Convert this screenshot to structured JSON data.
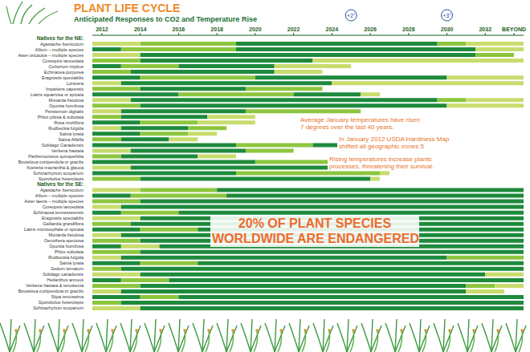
{
  "chart_data": {
    "type": "bar",
    "orientation": "horizontal",
    "stacked": true,
    "grid": false,
    "title": "PLANT LIFE CYCLE",
    "subtitle": "Anticipated Responses to CO2 and Temperature Rise",
    "xlim": [
      2011.5,
      2034
    ],
    "xticks": [
      2012,
      2014,
      2016,
      2018,
      2020,
      2022,
      2024,
      2026,
      2028,
      2030,
      2032,
      {
        "value": 2033.5,
        "label": "BEYOND"
      }
    ],
    "start": 2011.5,
    "markers": [
      {
        "value": 2025,
        "label": "+2°"
      },
      {
        "value": 2030,
        "label": "+3°"
      }
    ],
    "annotations": [
      [
        "Average January temperatures have risen",
        "7 degrees over the last 40 years."
      ],
      [
        "In January 2012 USDA Hardiness Map",
        "shifted all geographic zones 5"
      ],
      [
        "Rising temperatures increase plants",
        "processes, threatening their survival."
      ]
    ],
    "headline": [
      "20% OF PLANT SPECIES",
      "WORLDWIDE ARE ENDANGERED"
    ],
    "groups": [
      {
        "title": "Natives for the NE:",
        "rows": [
          {
            "name": "Agastache foeniculum",
            "durations": [
              2.5,
              5,
              10.5,
              1.5,
              3
            ],
            "colors": [
              "#c8dc6e",
              "#8cc63f",
              "#1e8a3c",
              "#8cc63f",
              "#c8dc6e"
            ]
          },
          {
            "name": "Allium – multiple species",
            "durations": [
              1.5,
              6,
              12.5,
              2.5
            ],
            "colors": [
              "#1e8a3c",
              "#8cc63f",
              "#1e8a3c",
              "#c8dc6e"
            ]
          },
          {
            "name": "Aster oricaulos – multiple species",
            "durations": [
              2.5,
              17.5,
              2
            ],
            "colors": [
              "#c8dc6e",
              "#1e8a3c",
              "#8cc63f"
            ]
          },
          {
            "name": "Coreopsis lanceolata",
            "durations": [
              2.5,
              9,
              11
            ],
            "colors": [
              "#8cc63f",
              "#1e8a3c",
              "#c8dc6e"
            ]
          },
          {
            "name": "Cichorium intybus",
            "durations": [
              1.5,
              3,
              5,
              4
            ],
            "colors": [
              "#1e8a3c",
              "#8cc63f",
              "#1e8a3c",
              "#c8dc6e"
            ]
          },
          {
            "name": "Echinacea purpurea",
            "durations": [
              2,
              7.5,
              2.5
            ],
            "colors": [
              "#8cc63f",
              "#1e8a3c",
              "#c8dc6e"
            ]
          },
          {
            "name": "Eragrostis spectabilis",
            "durations": [
              2.5,
              6,
              10,
              4
            ],
            "colors": [
              "#1e8a3c",
              "#8cc63f",
              "#1e8a3c",
              "#c8dc6e"
            ]
          },
          {
            "name": "Lonicera",
            "durations": [
              1.5,
              11,
              10
            ],
            "colors": [
              "#c8dc6e",
              "#1e8a3c",
              "#c8dc6e"
            ]
          },
          {
            "name": "Impatiens capensis",
            "durations": [
              2.5,
              5.5,
              4
            ],
            "colors": [
              "#8cc63f",
              "#1e8a3c",
              "#8cc63f"
            ]
          },
          {
            "name": "Liatris squarrosa or spicata",
            "durations": [
              4.5,
              6,
              3.5,
              1
            ],
            "colors": [
              "#1e8a3c",
              "#8cc63f",
              "#1e8a3c",
              "#c8dc6e"
            ]
          },
          {
            "name": "Monarda fistulosa",
            "durations": [
              2,
              16,
              1.5,
              3
            ],
            "colors": [
              "#c8dc6e",
              "#1e8a3c",
              "#8cc63f",
              "#c8dc6e"
            ]
          },
          {
            "name": "Opuntia humifusa",
            "durations": [
              2.5,
              16,
              4
            ],
            "colors": [
              "#8cc63f",
              "#1e8a3c",
              "#c8dc6e"
            ]
          },
          {
            "name": "Penstemon digitalis",
            "durations": [
              1.5,
              6.5,
              6
            ],
            "colors": [
              "#c8dc6e",
              "#1e8a3c",
              "#8cc63f"
            ]
          },
          {
            "name": "Phlox pilosa & subulata",
            "durations": [
              1.5,
              4.5,
              2.5
            ],
            "colors": [
              "#8cc63f",
              "#1e8a3c",
              "#c8dc6e"
            ]
          },
          {
            "name": "Rosa multiflora",
            "durations": [
              2.5,
              3,
              3
            ],
            "colors": [
              "#1e8a3c",
              "#8cc63f",
              "#c8dc6e"
            ]
          },
          {
            "name": "Rudbeckia fulgida",
            "durations": [
              1.5,
              3.5,
              2
            ],
            "colors": [
              "#c8dc6e",
              "#1e8a3c",
              "#8cc63f"
            ]
          },
          {
            "name": "Salvia lyrata",
            "durations": [
              2.5,
              2.5,
              1.5
            ],
            "colors": [
              "#1e8a3c",
              "#8cc63f",
              "#c8dc6e"
            ]
          },
          {
            "name": "Salvia Alfalfa",
            "durations": [
              1.5,
              2.5,
              1.5
            ],
            "colors": [
              "#8cc63f",
              "#1e8a3c",
              "#c8dc6e"
            ]
          },
          {
            "name": "Solidago Canadensis",
            "durations": [
              7.5,
              4,
              3.5,
              0.5
            ],
            "colors": [
              "#1e8a3c",
              "#8cc63f",
              "#1e8a3c",
              "#c8dc6e"
            ]
          },
          {
            "name": "Verbena hastata",
            "durations": [
              2,
              6,
              2.5
            ],
            "colors": [
              "#c8dc6e",
              "#1e8a3c",
              "#8cc63f"
            ]
          },
          {
            "name": "Parthenocissus quinquefolia",
            "durations": [
              1.5,
              4,
              2
            ],
            "colors": [
              "#8cc63f",
              "#1e8a3c",
              "#c8dc6e"
            ]
          },
          {
            "name": "Bouteloua curtipendula or gracilis",
            "durations": [
              8.5,
              6.5,
              0.5
            ],
            "colors": [
              "#1e8a3c",
              "#8cc63f",
              "#c8dc6e"
            ]
          },
          {
            "name": "Koeleria macrantha & glauca",
            "durations": [
              2,
              13,
              0.5
            ],
            "colors": [
              "#c8dc6e",
              "#1e8a3c",
              "#8cc63f"
            ]
          },
          {
            "name": "Schizachyrium scoparium",
            "durations": [
              7.5,
              7.5,
              0.5
            ],
            "colors": [
              "#1e8a3c",
              "#8cc63f",
              "#c8dc6e"
            ]
          },
          {
            "name": "Sporobolus heterolepis",
            "durations": [
              2.5,
              12,
              0.5
            ],
            "colors": [
              "#8cc63f",
              "#1e8a3c",
              "#c8dc6e"
            ]
          }
        ]
      },
      {
        "title": "Natives for the SE:",
        "rows": [
          {
            "name": "Agastache foeniculum",
            "durations": [
              2.5,
              4,
              16
            ],
            "colors": [
              "#c8dc6e",
              "#8cc63f",
              "#1e8a3c"
            ]
          },
          {
            "name": "Allium – multiple species",
            "durations": [
              2,
              5,
              15.5
            ],
            "colors": [
              "#1e8a3c",
              "#8cc63f",
              "#1e8a3c"
            ]
          },
          {
            "name": "Aster laevis – multiple species",
            "durations": [
              2.5,
              20
            ],
            "colors": [
              "#8cc63f",
              "#1e8a3c"
            ]
          },
          {
            "name": "Coreopsis lanceolata",
            "durations": [
              1.5,
              21
            ],
            "colors": [
              "#c8dc6e",
              "#1e8a3c"
            ]
          },
          {
            "name": "Echinacea tennesseensis",
            "durations": [
              1.5,
              3,
              18
            ],
            "colors": [
              "#1e8a3c",
              "#8cc63f",
              "#1e8a3c"
            ]
          },
          {
            "name": "Eragrostis spectabilis",
            "durations": [
              2.5,
              20
            ],
            "colors": [
              "#c8dc6e",
              "#1e8a3c"
            ]
          },
          {
            "name": "Gaillardia grandiflora",
            "durations": [
              2,
              20.5
            ],
            "colors": [
              "#8cc63f",
              "#1e8a3c"
            ]
          },
          {
            "name": "Liatris microcephala or spicata",
            "durations": [
              2.5,
              3,
              17.5
            ],
            "colors": [
              "#1e8a3c",
              "#8cc63f",
              "#1e8a3c"
            ]
          },
          {
            "name": "Monarda fistulosa",
            "durations": [
              1.5,
              21
            ],
            "colors": [
              "#c8dc6e",
              "#1e8a3c"
            ]
          },
          {
            "name": "Oenothera speciosa",
            "durations": [
              2.5,
              20
            ],
            "colors": [
              "#8cc63f",
              "#1e8a3c"
            ]
          },
          {
            "name": "Opuntia humifusa",
            "durations": [
              1.5,
              2,
              19
            ],
            "colors": [
              "#1e8a3c",
              "#c8dc6e",
              "#1e8a3c"
            ]
          },
          {
            "name": "Phlox subulata",
            "durations": [
              2.5,
              20
            ],
            "colors": [
              "#8cc63f",
              "#1e8a3c"
            ]
          },
          {
            "name": "Rudbeckia fulgida",
            "durations": [
              1.5,
              17,
              4
            ],
            "colors": [
              "#c8dc6e",
              "#1e8a3c",
              "#8cc63f"
            ]
          },
          {
            "name": "Salvia lyrata",
            "durations": [
              2.5,
              3,
              17
            ],
            "colors": [
              "#1e8a3c",
              "#8cc63f",
              "#1e8a3c"
            ]
          },
          {
            "name": "Sedum ternatum",
            "durations": [
              1.5,
              21
            ],
            "colors": [
              "#8cc63f",
              "#1e8a3c"
            ]
          },
          {
            "name": "Solidago canadensis",
            "durations": [
              2.5,
              18,
              2
            ],
            "colors": [
              "#c8dc6e",
              "#1e8a3c",
              "#c8dc6e"
            ]
          },
          {
            "name": "Helianthus annuus",
            "durations": [
              1.5,
              2.5,
              18.5
            ],
            "colors": [
              "#1e8a3c",
              "#8cc63f",
              "#1e8a3c"
            ]
          },
          {
            "name": "Verbena hastata & tenuisecta",
            "durations": [
              2.5,
              17,
              1.5,
              1.5
            ],
            "colors": [
              "#8cc63f",
              "#1e8a3c",
              "#8cc63f",
              "#c8dc6e"
            ]
          },
          {
            "name": "Bouteloua curtipendula or gracilis",
            "durations": [
              1.5,
              18,
              2
            ],
            "colors": [
              "#c8dc6e",
              "#1e8a3c",
              "#c8dc6e"
            ]
          },
          {
            "name": "Stipa tenuissima",
            "durations": [
              2.5,
              2,
              18
            ],
            "colors": [
              "#1e8a3c",
              "#8cc63f",
              "#1e8a3c"
            ]
          },
          {
            "name": "Sporobolus heterolepis",
            "durations": [
              1.5,
              21
            ],
            "colors": [
              "#8cc63f",
              "#1e8a3c"
            ]
          },
          {
            "name": "Schizachyrium scoparium",
            "durations": [
              2.5,
              20
            ],
            "colors": [
              "#c8dc6e",
              "#1e8a3c"
            ]
          }
        ]
      }
    ]
  }
}
